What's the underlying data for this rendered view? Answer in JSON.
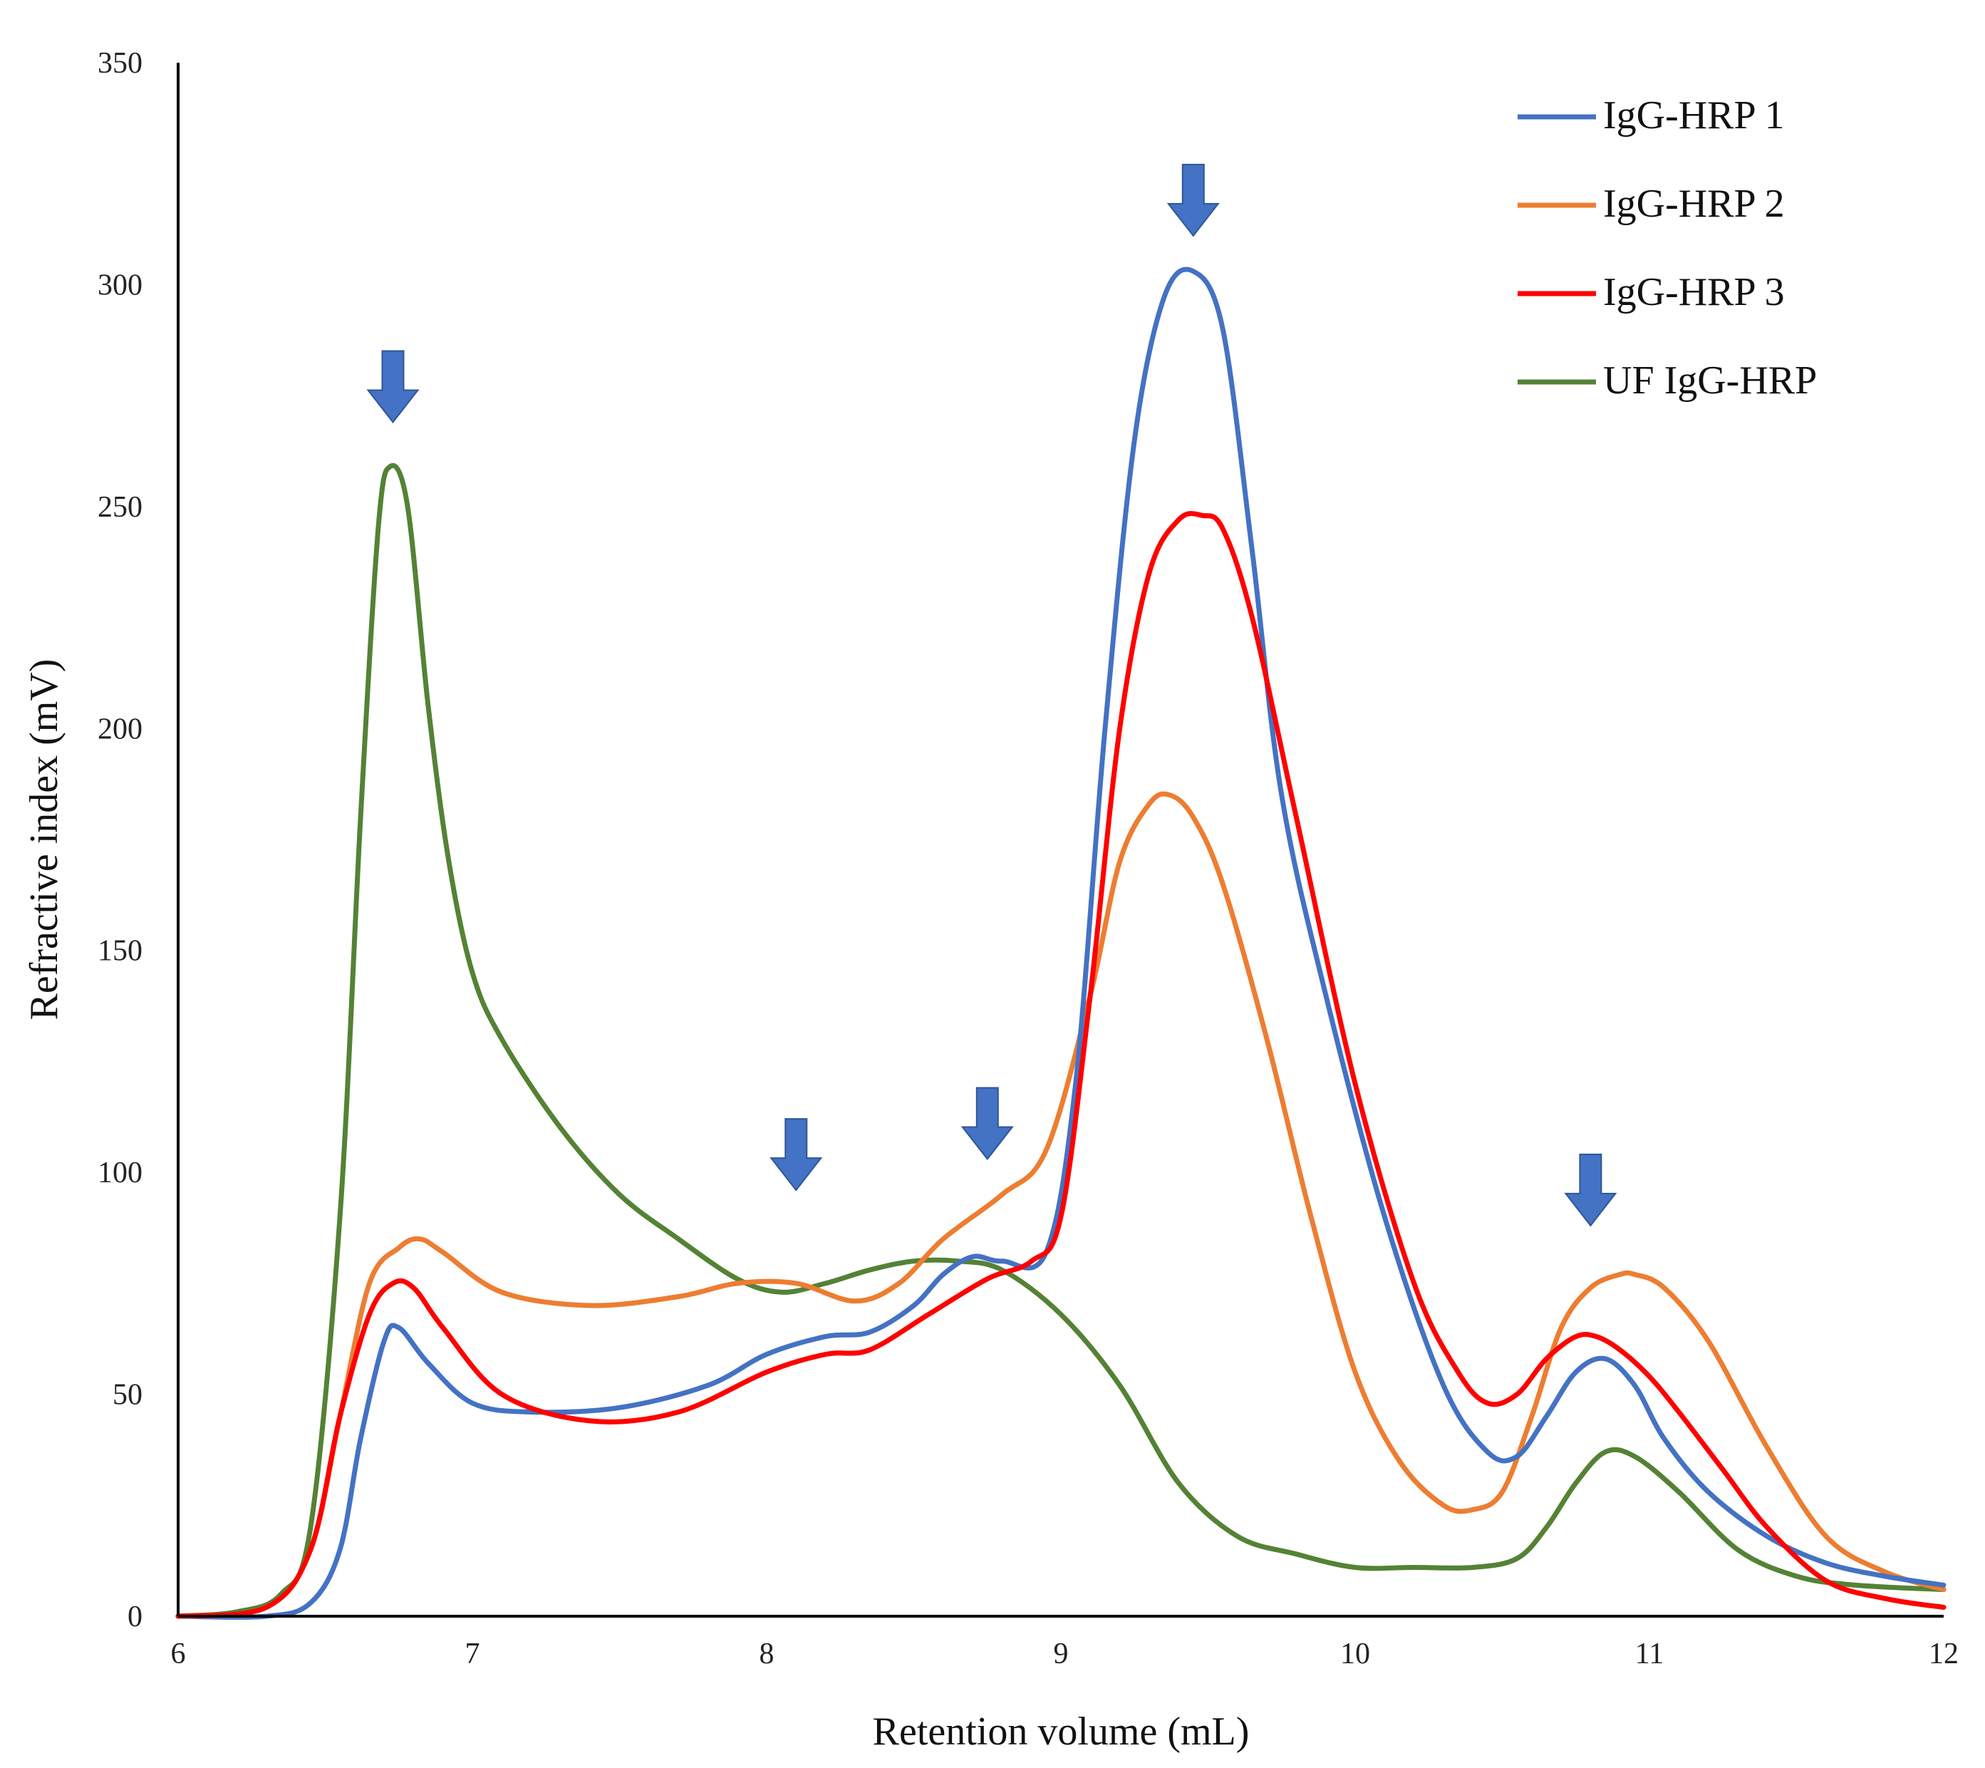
{
  "chart_data": {
    "type": "line",
    "title": "",
    "xlabel": "Retention volume (mL)",
    "ylabel": "Refractive index (mV)",
    "xlim": [
      6,
      12
    ],
    "ylim": [
      0,
      350
    ],
    "xticks": [
      6,
      7,
      8,
      9,
      10,
      11,
      12
    ],
    "yticks": [
      0,
      50,
      100,
      150,
      200,
      250,
      300,
      350
    ],
    "grid": false,
    "legend_position": "top-right",
    "series": [
      {
        "name": "IgG-HRP 1",
        "color": "#4472C4",
        "x": [
          6.0,
          6.3,
          6.45,
          6.55,
          6.62,
          6.7,
          6.75,
          6.85,
          7.0,
          7.2,
          7.5,
          7.8,
          8.0,
          8.2,
          8.35,
          8.5,
          8.6,
          8.7,
          8.8,
          8.95,
          9.05,
          9.15,
          9.25,
          9.35,
          9.45,
          9.55,
          9.65,
          9.75,
          9.9,
          10.1,
          10.3,
          10.45,
          10.55,
          10.65,
          10.75,
          10.85,
          10.95,
          11.05,
          11.2,
          11.4,
          11.6,
          11.8,
          12.0
        ],
        "y": [
          0,
          0,
          3,
          15,
          40,
          62,
          65,
          57,
          48,
          46,
          47,
          52,
          59,
          63,
          64,
          70,
          77,
          81,
          80,
          82,
          120,
          200,
          265,
          297,
          303,
          290,
          240,
          185,
          140,
          90,
          52,
          37,
          36,
          45,
          55,
          58,
          52,
          40,
          28,
          18,
          12,
          9,
          7
        ]
      },
      {
        "name": "IgG-HRP 2",
        "color": "#ED7D31",
        "x": [
          6.0,
          6.3,
          6.45,
          6.55,
          6.65,
          6.75,
          6.82,
          6.9,
          7.1,
          7.4,
          7.7,
          7.9,
          8.1,
          8.3,
          8.45,
          8.6,
          8.8,
          8.95,
          9.1,
          9.2,
          9.3,
          9.37,
          9.45,
          9.55,
          9.7,
          9.85,
          10.0,
          10.15,
          10.3,
          10.4,
          10.5,
          10.6,
          10.7,
          10.8,
          10.9,
          10.95,
          11.05,
          11.2,
          11.4,
          11.6,
          11.8,
          12.0
        ],
        "y": [
          0,
          2,
          15,
          45,
          75,
          83,
          85,
          82,
          73,
          70,
          72,
          75,
          75,
          71,
          75,
          85,
          95,
          105,
          140,
          170,
          183,
          185,
          180,
          165,
          130,
          90,
          55,
          35,
          25,
          24,
          28,
          45,
          65,
          74,
          77,
          77,
          74,
          62,
          38,
          18,
          10,
          6
        ]
      },
      {
        "name": "IgG-HRP 3",
        "color": "#FF0000",
        "x": [
          6.0,
          6.3,
          6.45,
          6.55,
          6.65,
          6.73,
          6.8,
          6.9,
          7.1,
          7.4,
          7.7,
          8.0,
          8.2,
          8.35,
          8.55,
          8.75,
          8.9,
          9.0,
          9.1,
          9.2,
          9.3,
          9.4,
          9.48,
          9.55,
          9.65,
          9.8,
          10.0,
          10.2,
          10.35,
          10.45,
          10.55,
          10.65,
          10.75,
          10.82,
          10.9,
          11.0,
          11.1,
          11.25,
          11.4,
          11.6,
          11.8,
          12.0
        ],
        "y": [
          0,
          2,
          15,
          45,
          68,
          75,
          74,
          65,
          50,
          44,
          46,
          55,
          59,
          60,
          68,
          76,
          80,
          90,
          140,
          200,
          235,
          247,
          248,
          245,
          225,
          180,
          120,
          75,
          55,
          48,
          50,
          58,
          63,
          63,
          60,
          54,
          46,
          33,
          20,
          8,
          4,
          2
        ]
      },
      {
        "name": "UF IgG-HRP",
        "color": "#548235",
        "x": [
          6.0,
          6.2,
          6.35,
          6.45,
          6.55,
          6.62,
          6.68,
          6.72,
          6.78,
          6.85,
          6.92,
          7.0,
          7.1,
          7.3,
          7.5,
          7.7,
          7.9,
          8.05,
          8.2,
          8.35,
          8.5,
          8.65,
          8.8,
          9.0,
          9.2,
          9.4,
          9.6,
          9.8,
          10.0,
          10.2,
          10.4,
          10.55,
          10.65,
          10.75,
          10.85,
          10.95,
          11.1,
          11.3,
          11.5,
          11.7,
          12.0
        ],
        "y": [
          0,
          1,
          5,
          20,
          90,
          180,
          245,
          259,
          250,
          205,
          170,
          145,
          130,
          110,
          95,
          85,
          76,
          73,
          75,
          78,
          80,
          80,
          78,
          68,
          52,
          30,
          18,
          14,
          11,
          11,
          11,
          13,
          20,
          30,
          37,
          36,
          28,
          15,
          9,
          7,
          6
        ]
      }
    ],
    "arrows": [
      {
        "x": 6.73,
        "y": 269
      },
      {
        "x": 8.1,
        "y": 96
      },
      {
        "x": 8.75,
        "y": 103
      },
      {
        "x": 9.45,
        "y": 311
      },
      {
        "x": 10.8,
        "y": 88
      }
    ],
    "arrow_color": "#4472C4"
  }
}
